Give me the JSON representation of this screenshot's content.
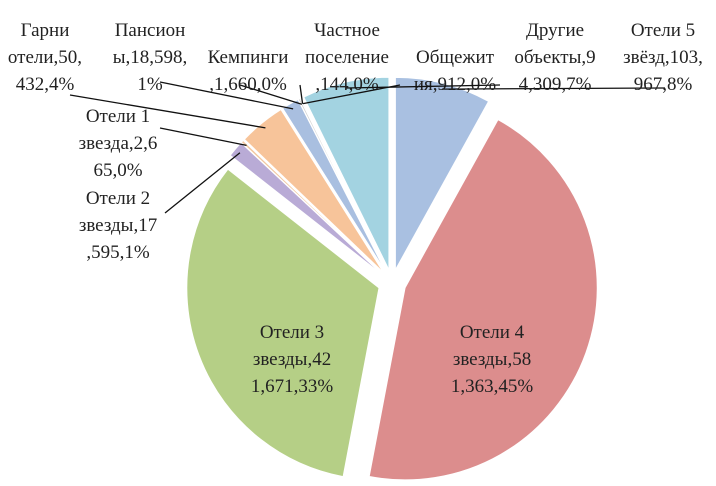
{
  "chart_data": {
    "type": "pie",
    "values": [
      103967,
      581363,
      421671,
      17595,
      2665,
      50432,
      18598,
      1660,
      144,
      912,
      94309
    ],
    "value_labels": [
      "Отели 5\nзвёзд,103,\n967,8%",
      "Отели 4\nзвезды,58\n1,363,45%",
      "Отели 3\nзвезды,42\n1,671,33%",
      "Отели 2\nзвезды,17\n,595,1%",
      "Отели 1\nзвезда,2,6\n65,0%",
      "Гарни\nотели,50,\n432,4%",
      "Пансион\nы,18,598,\n1%",
      "Кемпинги\n,1,660,0%",
      "Частное\nпоселение\n,144,0%",
      "Общежит\nия,912,0%",
      "Другие\nобъекты,9\n4,309,7%"
    ],
    "colors": [
      "#a9c0e1",
      "#dc8d8d",
      "#b5cf86",
      "#b9abd6",
      "#f2c7a0",
      "#f7c49a",
      "#a9bfe0",
      "#c8c8c8",
      "#9fd3e0",
      "#a9bfe0",
      "#a3d3e1"
    ]
  }
}
